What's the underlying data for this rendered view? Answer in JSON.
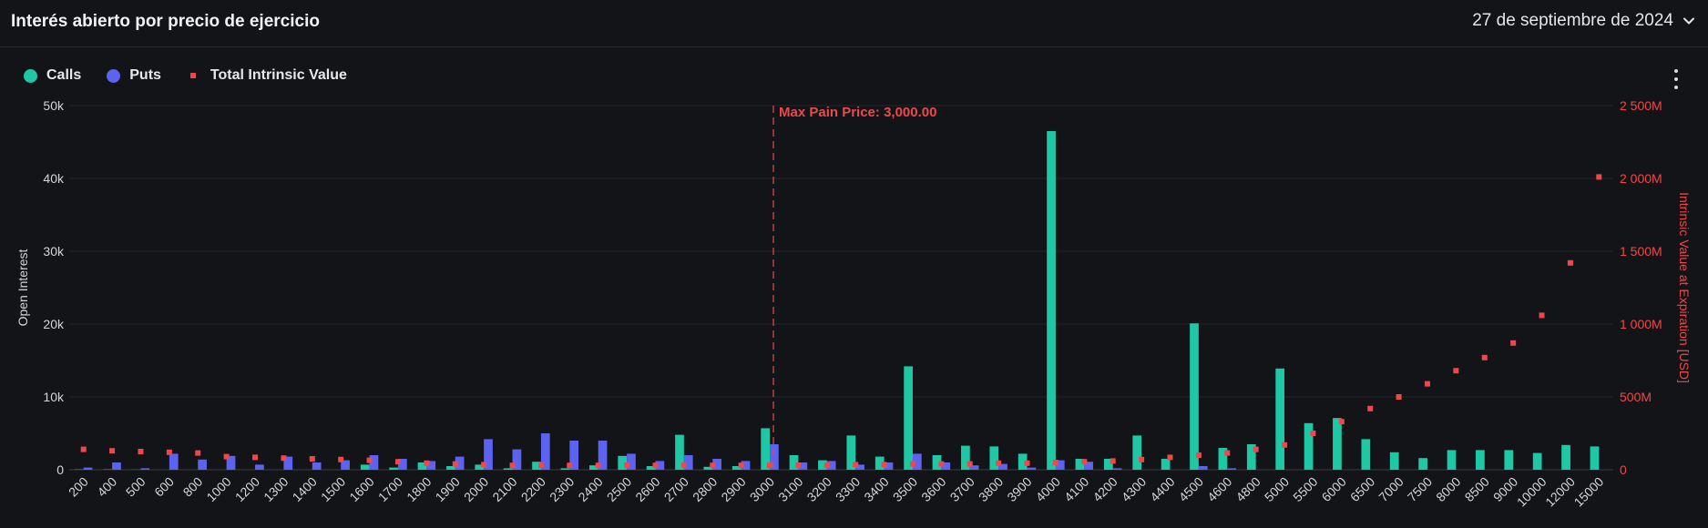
{
  "header": {
    "title": "Interés abierto por precio de ejercicio",
    "date": "27 de septiembre de 2024"
  },
  "menu_icon": "kebab-menu-icon",
  "chart_data": {
    "type": "bar",
    "categories": [
      "200",
      "400",
      "500",
      "600",
      "800",
      "1000",
      "1200",
      "1300",
      "1400",
      "1500",
      "1600",
      "1700",
      "1800",
      "1900",
      "2000",
      "2100",
      "2200",
      "2300",
      "2400",
      "2500",
      "2600",
      "2700",
      "2800",
      "2900",
      "3000",
      "3100",
      "3200",
      "3300",
      "3400",
      "3500",
      "3600",
      "3700",
      "3800",
      "3900",
      "4000",
      "4100",
      "4200",
      "4300",
      "4400",
      "4500",
      "4600",
      "4800",
      "5000",
      "5500",
      "6000",
      "6500",
      "7000",
      "7500",
      "8000",
      "8500",
      "9000",
      "10000",
      "12000",
      "15000"
    ],
    "series": [
      {
        "name": "Calls",
        "type": "bar",
        "axis": "left",
        "color": "#1ec8a5",
        "values": [
          50,
          50,
          20,
          0,
          0,
          0,
          0,
          0,
          0,
          0,
          700,
          300,
          1000,
          500,
          700,
          200,
          1100,
          200,
          600,
          1900,
          500,
          4800,
          400,
          500,
          5700,
          2000,
          1300,
          4700,
          1800,
          14200,
          2000,
          3300,
          3200,
          2200,
          46500,
          1500,
          1500,
          4700,
          1500,
          20100,
          3000,
          3500,
          13900,
          6400,
          7100,
          4200,
          2400,
          1600,
          2700,
          2700,
          2700,
          2300,
          3400,
          3200
        ]
      },
      {
        "name": "Puts",
        "type": "bar",
        "axis": "left",
        "color": "#5b63f0",
        "values": [
          300,
          1000,
          200,
          2200,
          1400,
          1900,
          700,
          1800,
          1000,
          1300,
          2000,
          1500,
          1200,
          1800,
          4200,
          2800,
          5000,
          4000,
          4000,
          2200,
          1200,
          2000,
          1500,
          1200,
          3500,
          1000,
          1200,
          700,
          1000,
          2200,
          1000,
          600,
          800,
          300,
          1300,
          1100,
          200,
          0,
          0,
          500,
          200,
          0,
          0,
          0,
          0,
          0,
          0,
          0,
          0,
          0,
          0,
          0,
          0,
          0
        ]
      },
      {
        "name": "Total Intrinsic Value",
        "type": "scatter",
        "axis": "right",
        "color": "#f0474a",
        "values": [
          140,
          130,
          125,
          120,
          115,
          90,
          85,
          80,
          75,
          70,
          65,
          55,
          45,
          40,
          35,
          30,
          30,
          30,
          30,
          30,
          30,
          30,
          30,
          30,
          30,
          30,
          30,
          35,
          35,
          40,
          40,
          40,
          45,
          45,
          50,
          55,
          60,
          70,
          85,
          100,
          115,
          140,
          170,
          250,
          330,
          420,
          500,
          590,
          680,
          770,
          870,
          1060,
          1420,
          2010
        ]
      }
    ],
    "y_left": {
      "label": "Open Interest",
      "min": 0,
      "max": 50000,
      "ticks": [
        {
          "v": 0,
          "t": "0"
        },
        {
          "v": 10000,
          "t": "10k"
        },
        {
          "v": 20000,
          "t": "20k"
        },
        {
          "v": 30000,
          "t": "30k"
        },
        {
          "v": 40000,
          "t": "40k"
        },
        {
          "v": 50000,
          "t": "50k"
        }
      ]
    },
    "y_right": {
      "label": "Intrinsic Value at Expiration [USD]",
      "min": 0,
      "max": 2500,
      "ticks": [
        {
          "v": 0,
          "t": "0"
        },
        {
          "v": 500,
          "t": "500M"
        },
        {
          "v": 1000,
          "t": "1 000M"
        },
        {
          "v": 1500,
          "t": "1 500M"
        },
        {
          "v": 2000,
          "t": "2 000M"
        },
        {
          "v": 2500,
          "t": "2 500M"
        }
      ]
    },
    "annotation": {
      "category": "3000",
      "text": "Max Pain Price: 3,000.00",
      "color": "#f0474a"
    },
    "grid": true,
    "legend_position": "top-left"
  }
}
